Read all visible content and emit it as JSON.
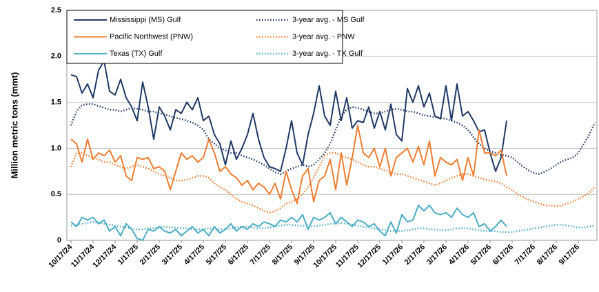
{
  "chart_data": {
    "type": "line",
    "ylabel": "Million metric tons (mmt)",
    "categories": [
      "10/17/24",
      null,
      null,
      null,
      "11/17/24",
      null,
      null,
      null,
      "12/17/24",
      null,
      null,
      null,
      "1/17/25",
      null,
      null,
      null,
      "2/17/25",
      null,
      null,
      null,
      "3/17/25",
      null,
      null,
      null,
      "4/17/25",
      null,
      null,
      null,
      "5/17/25",
      null,
      null,
      null,
      "6/17/25",
      null,
      null,
      null,
      "7/17/25",
      null,
      null,
      null,
      "8/17/25",
      null,
      null,
      null,
      "9/17/25",
      null,
      null,
      null,
      "10/17/25",
      null,
      null,
      null,
      "11/17/25",
      null,
      null,
      null,
      "12/17/25",
      null,
      null,
      null,
      "1/17/26",
      null,
      null,
      null,
      "2/17/26",
      null,
      null,
      null,
      "3/17/26",
      null,
      null,
      null,
      "4/17/26",
      null,
      null,
      null,
      "5/17/26",
      null,
      null,
      null,
      "6/17/26",
      null,
      null,
      null,
      "7/17/26",
      null,
      null,
      null,
      "8/17/26",
      null,
      null,
      null,
      "9/17/26",
      null,
      null,
      null
    ],
    "ylim": [
      0,
      2.5
    ],
    "yticks": [
      0,
      0.5,
      {
        "value": 1,
        "label": "1.0"
      },
      1.5,
      {
        "value": 2,
        "label": "2.0"
      },
      2.5
    ],
    "grid": true,
    "legend": "top-left",
    "series": [
      {
        "name": "Mississippi (MS) Gulf",
        "color": "#1f3864",
        "style": "solid",
        "values": [
          1.8,
          1.78,
          1.6,
          1.7,
          1.55,
          1.85,
          1.95,
          1.62,
          1.58,
          1.75,
          1.55,
          1.45,
          1.3,
          1.72,
          1.45,
          1.1,
          1.45,
          1.35,
          1.2,
          1.42,
          1.38,
          1.5,
          1.42,
          1.55,
          1.3,
          1.35,
          1.15,
          1.05,
          0.82,
          1.08,
          0.88,
          1.0,
          1.15,
          1.38,
          1.1,
          0.9,
          0.8,
          0.78,
          0.75,
          1.0,
          1.3,
          0.95,
          0.82,
          1.15,
          1.38,
          1.68,
          1.35,
          1.25,
          1.62,
          1.3,
          1.55,
          1.22,
          1.3,
          1.28,
          1.45,
          1.22,
          1.4,
          1.2,
          1.48,
          1.15,
          1.08,
          1.65,
          1.5,
          1.68,
          1.45,
          1.6,
          1.35,
          1.32,
          1.68,
          1.3,
          1.7,
          1.35,
          1.4,
          1.3,
          1.18,
          1.2,
          0.95,
          0.75,
          0.9,
          1.3,
          null,
          null,
          null,
          null,
          null,
          null,
          null,
          null,
          null,
          null,
          null,
          null,
          null,
          null,
          null,
          null
        ]
      },
      {
        "name": "3-year avg. - MS Gulf",
        "color": "#1f3864",
        "style": "dotted",
        "values": [
          1.25,
          1.4,
          1.47,
          1.48,
          1.48,
          1.46,
          1.44,
          1.42,
          1.42,
          1.4,
          1.42,
          1.44,
          1.43,
          1.42,
          1.4,
          1.4,
          1.38,
          1.37,
          1.35,
          1.33,
          1.32,
          1.3,
          1.28,
          1.25,
          1.2,
          1.1,
          1.05,
          1.0,
          0.98,
          0.95,
          0.95,
          0.92,
          0.9,
          0.88,
          0.85,
          0.82,
          0.78,
          0.74,
          0.72,
          0.75,
          0.78,
          0.8,
          0.82,
          0.8,
          0.82,
          0.88,
          0.95,
          1.05,
          1.2,
          1.35,
          1.42,
          1.45,
          1.44,
          1.42,
          1.4,
          1.38,
          1.38,
          1.4,
          1.42,
          1.43,
          1.42,
          1.4,
          1.4,
          1.38,
          1.36,
          1.35,
          1.34,
          1.33,
          1.32,
          1.3,
          1.28,
          1.25,
          1.2,
          1.12,
          1.05,
          1.0,
          0.97,
          0.95,
          0.93,
          0.92,
          0.9,
          0.85,
          0.8,
          0.76,
          0.73,
          0.72,
          0.75,
          0.78,
          0.82,
          0.86,
          0.88,
          0.9,
          0.95,
          1.05,
          1.15,
          1.28
        ]
      },
      {
        "name": "Pacific Northwest (PNW)",
        "color": "#ed7d31",
        "style": "solid",
        "values": [
          1.1,
          1.05,
          0.85,
          1.1,
          0.88,
          0.95,
          0.92,
          0.98,
          0.85,
          0.92,
          0.7,
          0.65,
          0.9,
          0.88,
          0.9,
          0.78,
          0.8,
          0.75,
          0.55,
          0.75,
          0.95,
          0.88,
          0.92,
          0.85,
          0.9,
          1.1,
          0.95,
          0.75,
          0.8,
          0.72,
          0.68,
          0.6,
          0.65,
          0.55,
          0.62,
          0.58,
          0.5,
          0.62,
          0.45,
          0.75,
          0.55,
          0.4,
          0.7,
          0.78,
          0.42,
          0.65,
          0.7,
          0.88,
          0.55,
          0.95,
          0.6,
          0.9,
          1.25,
          0.95,
          0.9,
          1.0,
          0.8,
          1.0,
          0.7,
          0.9,
          0.95,
          1.0,
          0.85,
          1.02,
          0.82,
          1.08,
          0.7,
          0.9,
          0.85,
          0.82,
          0.88,
          0.65,
          0.9,
          0.7,
          1.2,
          0.95,
          0.95,
          0.92,
          0.98,
          0.7,
          null,
          null,
          null,
          null,
          null,
          null,
          null,
          null,
          null,
          null,
          null,
          null,
          null,
          null,
          null,
          null
        ]
      },
      {
        "name": "3-year avg. - PNW",
        "color": "#ed7d31",
        "style": "dotted",
        "values": [
          0.8,
          0.95,
          0.95,
          0.92,
          0.9,
          0.88,
          0.85,
          0.85,
          0.82,
          0.8,
          0.78,
          0.8,
          0.82,
          0.8,
          0.78,
          0.75,
          0.72,
          0.7,
          0.68,
          0.65,
          0.65,
          0.66,
          0.68,
          0.7,
          0.7,
          0.68,
          0.62,
          0.58,
          0.55,
          0.5,
          0.45,
          0.42,
          0.4,
          0.38,
          0.35,
          0.32,
          0.3,
          0.32,
          0.35,
          0.4,
          0.42,
          0.45,
          0.5,
          0.58,
          0.68,
          0.8,
          0.92,
          0.95,
          0.95,
          0.92,
          0.9,
          0.88,
          0.85,
          0.82,
          0.8,
          0.8,
          0.78,
          0.76,
          0.74,
          0.72,
          0.72,
          0.7,
          0.68,
          0.66,
          0.64,
          0.62,
          0.6,
          0.62,
          0.65,
          0.68,
          0.7,
          0.72,
          0.72,
          0.7,
          0.68,
          0.66,
          0.65,
          0.64,
          0.62,
          0.58,
          0.55,
          0.5,
          0.47,
          0.44,
          0.42,
          0.4,
          0.38,
          0.38,
          0.37,
          0.38,
          0.4,
          0.42,
          0.45,
          0.48,
          0.52,
          0.58
        ]
      },
      {
        "name": "Texas (TX) Gulf",
        "color": "#4bacc6",
        "style": "solid",
        "values": [
          0.2,
          0.15,
          0.25,
          0.22,
          0.25,
          0.18,
          0.22,
          0.1,
          0.15,
          0.05,
          0.18,
          0.12,
          0.02,
          0.0,
          0.12,
          0.1,
          0.15,
          0.1,
          0.08,
          0.12,
          0.05,
          0.1,
          0.15,
          0.08,
          0.12,
          0.05,
          0.15,
          0.08,
          0.12,
          0.18,
          0.1,
          0.15,
          0.12,
          0.18,
          0.15,
          0.2,
          0.18,
          0.15,
          0.22,
          0.2,
          0.25,
          0.2,
          0.28,
          0.12,
          0.25,
          0.22,
          0.25,
          0.3,
          0.18,
          0.25,
          0.2,
          0.15,
          0.22,
          0.2,
          0.15,
          0.18,
          0.1,
          0.05,
          0.2,
          0.08,
          0.28,
          0.2,
          0.22,
          0.38,
          0.32,
          0.38,
          0.3,
          0.28,
          0.3,
          0.25,
          0.35,
          0.28,
          0.25,
          0.3,
          0.15,
          0.18,
          0.1,
          0.15,
          0.22,
          0.15,
          null,
          null,
          null,
          null,
          null,
          null,
          null,
          null,
          null,
          null,
          null,
          null,
          null,
          null,
          null,
          null
        ]
      },
      {
        "name": "3-year avg. - TX Gulf",
        "color": "#4bacc6",
        "style": "dotted",
        "values": [
          0.16,
          0.17,
          0.18,
          0.19,
          0.2,
          0.19,
          0.18,
          0.17,
          0.16,
          0.15,
          0.14,
          0.13,
          0.12,
          0.12,
          0.13,
          0.13,
          0.14,
          0.15,
          0.14,
          0.14,
          0.13,
          0.13,
          0.12,
          0.12,
          0.12,
          0.13,
          0.12,
          0.12,
          0.12,
          0.13,
          0.14,
          0.15,
          0.15,
          0.14,
          0.13,
          0.13,
          0.14,
          0.15,
          0.16,
          0.17,
          0.17,
          0.16,
          0.16,
          0.15,
          0.15,
          0.16,
          0.17,
          0.18,
          0.18,
          0.19,
          0.18,
          0.17,
          0.16,
          0.15,
          0.14,
          0.13,
          0.12,
          0.11,
          0.1,
          0.1,
          0.1,
          0.11,
          0.12,
          0.13,
          0.13,
          0.12,
          0.12,
          0.11,
          0.11,
          0.12,
          0.13,
          0.13,
          0.13,
          0.12,
          0.11,
          0.1,
          0.1,
          0.1,
          0.09,
          0.09,
          0.09,
          0.1,
          0.11,
          0.12,
          0.13,
          0.14,
          0.15,
          0.16,
          0.17,
          0.17,
          0.16,
          0.15,
          0.14,
          0.14,
          0.15,
          0.16
        ]
      }
    ]
  }
}
